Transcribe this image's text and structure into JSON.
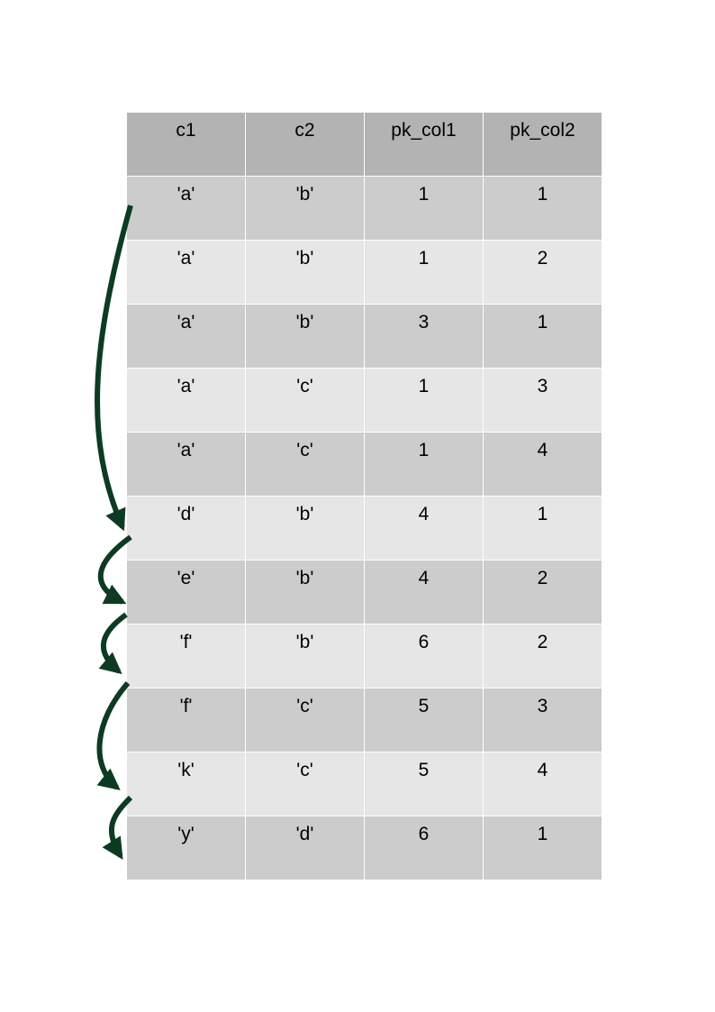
{
  "table": {
    "headers": [
      "c1",
      "c2",
      "pk_col1",
      "pk_col2"
    ],
    "rows": [
      [
        "'a'",
        "'b'",
        "1",
        "1"
      ],
      [
        "'a'",
        "'b'",
        "1",
        "2"
      ],
      [
        "'a'",
        "'b'",
        "3",
        "1"
      ],
      [
        "'a'",
        "'c'",
        "1",
        "3"
      ],
      [
        "'a'",
        "'c'",
        "1",
        "4"
      ],
      [
        "'d'",
        "'b'",
        "4",
        "1"
      ],
      [
        "'e'",
        "'b'",
        "4",
        "2"
      ],
      [
        "'f'",
        "'b'",
        "6",
        "2"
      ],
      [
        "'f'",
        "'c'",
        "5",
        "3"
      ],
      [
        "'k'",
        "'c'",
        "5",
        "4"
      ],
      [
        "'y'",
        "'d'",
        "6",
        "1"
      ]
    ]
  },
  "colors": {
    "header": "#b3b3b3",
    "row_dark": "#cccccc",
    "row_light": "#e6e6e6",
    "arrow": "#0d3b22"
  }
}
